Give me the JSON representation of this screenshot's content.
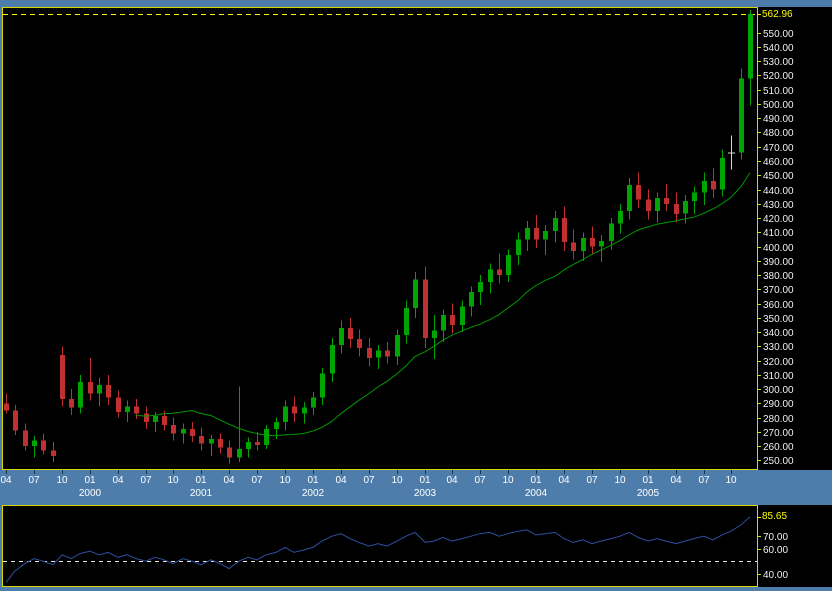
{
  "window": {
    "bg_color": "#4f7dab"
  },
  "chart_data": {
    "type": "candlestick",
    "title": "",
    "description": "Monthly OHLC candlestick chart with moving-average overlay and RSI-style indicator pane",
    "x": {
      "months": [
        "1999-04",
        "1999-05",
        "1999-06",
        "1999-07",
        "1999-08",
        "1999-09",
        "1999-10",
        "1999-11",
        "1999-12",
        "2000-01",
        "2000-02",
        "2000-03",
        "2000-04",
        "2000-05",
        "2000-06",
        "2000-07",
        "2000-08",
        "2000-09",
        "2000-10",
        "2000-11",
        "2000-12",
        "2001-01",
        "2001-02",
        "2001-03",
        "2001-04",
        "2001-05",
        "2001-06",
        "2001-07",
        "2001-08",
        "2001-09",
        "2001-10",
        "2001-11",
        "2001-12",
        "2002-01",
        "2002-02",
        "2002-03",
        "2002-04",
        "2002-05",
        "2002-06",
        "2002-07",
        "2002-08",
        "2002-09",
        "2002-10",
        "2002-11",
        "2002-12",
        "2003-01",
        "2003-02",
        "2003-03",
        "2003-04",
        "2003-05",
        "2003-06",
        "2003-07",
        "2003-08",
        "2003-09",
        "2003-10",
        "2003-11",
        "2003-12",
        "2004-01",
        "2004-02",
        "2004-03",
        "2004-04",
        "2004-05",
        "2004-06",
        "2004-07",
        "2004-08",
        "2004-09",
        "2004-10",
        "2004-11",
        "2004-12",
        "2005-01",
        "2005-02",
        "2005-03",
        "2005-04",
        "2005-05",
        "2005-06",
        "2005-07",
        "2005-08",
        "2005-09",
        "2005-10",
        "2005-11",
        "2005-12"
      ],
      "tick_month_numbers": [
        1,
        4,
        7,
        10
      ],
      "month_tick_labels": [
        "04",
        "07",
        "10",
        "01"
      ],
      "year_labels": [
        "2000",
        "2001",
        "2002",
        "2003",
        "2004",
        "2005"
      ]
    },
    "price_pane": {
      "ylim": [
        244,
        568
      ],
      "axis_ticks": {
        "min": 250,
        "max": 550,
        "step": 10,
        "format_decimals": 2
      },
      "last_price": 562.96,
      "last_price_label": "562.96",
      "ma_period": 15,
      "candles_ohlc": [
        [
          290,
          297,
          283,
          285
        ],
        [
          285,
          289,
          268,
          271
        ],
        [
          271,
          276,
          257,
          260
        ],
        [
          260,
          267,
          252,
          264
        ],
        [
          264,
          269,
          254,
          257
        ],
        [
          257,
          263,
          249,
          253
        ],
        [
          324,
          330,
          288,
          293
        ],
        [
          293,
          300,
          282,
          287
        ],
        [
          287,
          310,
          283,
          305
        ],
        [
          305,
          322,
          292,
          297
        ],
        [
          297,
          308,
          288,
          303
        ],
        [
          303,
          310,
          289,
          294
        ],
        [
          294,
          299,
          280,
          284
        ],
        [
          284,
          292,
          277,
          288
        ],
        [
          288,
          293,
          279,
          283
        ],
        [
          283,
          288,
          272,
          277
        ],
        [
          277,
          284,
          270,
          281
        ],
        [
          281,
          285,
          271,
          275
        ],
        [
          275,
          280,
          264,
          269
        ],
        [
          269,
          276,
          262,
          272
        ],
        [
          272,
          277,
          263,
          267
        ],
        [
          267,
          273,
          257,
          262
        ],
        [
          262,
          268,
          253,
          265
        ],
        [
          265,
          269,
          255,
          259
        ],
        [
          259,
          264,
          248,
          252
        ],
        [
          252,
          302,
          249,
          258
        ],
        [
          258,
          266,
          252,
          263
        ],
        [
          263,
          270,
          257,
          261
        ],
        [
          261,
          275,
          258,
          272
        ],
        [
          272,
          280,
          265,
          277
        ],
        [
          277,
          292,
          271,
          288
        ],
        [
          288,
          295,
          277,
          283
        ],
        [
          283,
          291,
          276,
          287
        ],
        [
          287,
          298,
          282,
          294
        ],
        [
          294,
          315,
          289,
          311
        ],
        [
          311,
          336,
          305,
          331
        ],
        [
          331,
          348,
          325,
          343
        ],
        [
          343,
          350,
          329,
          335
        ],
        [
          335,
          342,
          323,
          329
        ],
        [
          329,
          336,
          316,
          322
        ],
        [
          322,
          331,
          314,
          327
        ],
        [
          327,
          333,
          318,
          323
        ],
        [
          323,
          342,
          317,
          338
        ],
        [
          338,
          362,
          332,
          357
        ],
        [
          357,
          382,
          350,
          377
        ],
        [
          377,
          386,
          329,
          336
        ],
        [
          336,
          352,
          321,
          341
        ],
        [
          341,
          356,
          333,
          352
        ],
        [
          352,
          360,
          339,
          345
        ],
        [
          345,
          362,
          340,
          358
        ],
        [
          358,
          372,
          351,
          368
        ],
        [
          368,
          380,
          359,
          375
        ],
        [
          375,
          388,
          367,
          384
        ],
        [
          384,
          395,
          374,
          380
        ],
        [
          380,
          398,
          375,
          394
        ],
        [
          394,
          410,
          387,
          405
        ],
        [
          405,
          418,
          397,
          413
        ],
        [
          413,
          422,
          399,
          405
        ],
        [
          405,
          415,
          394,
          411
        ],
        [
          411,
          425,
          403,
          420
        ],
        [
          420,
          428,
          397,
          403
        ],
        [
          403,
          412,
          391,
          397
        ],
        [
          397,
          410,
          390,
          406
        ],
        [
          406,
          414,
          395,
          400
        ],
        [
          400,
          408,
          389,
          404
        ],
        [
          404,
          420,
          398,
          416
        ],
        [
          416,
          430,
          409,
          425
        ],
        [
          425,
          448,
          419,
          443
        ],
        [
          443,
          452,
          427,
          433
        ],
        [
          433,
          440,
          419,
          425
        ],
        [
          425,
          438,
          417,
          434
        ],
        [
          434,
          444,
          425,
          430
        ],
        [
          430,
          438,
          417,
          423
        ],
        [
          423,
          436,
          416,
          432
        ],
        [
          432,
          442,
          423,
          438
        ],
        [
          438,
          452,
          429,
          446
        ],
        [
          446,
          455,
          434,
          440
        ],
        [
          440,
          468,
          435,
          462
        ],
        [
          466,
          478,
          454,
          466
        ],
        [
          466,
          525,
          461,
          518
        ],
        [
          518,
          566,
          499,
          562.96
        ]
      ]
    },
    "indicator_pane": {
      "ylim": [
        30,
        95
      ],
      "axis_tick_values": [
        70,
        60,
        40
      ],
      "dashed_level": 50,
      "last_value": 85.65,
      "last_value_label": "85.65",
      "values": [
        33,
        42,
        48,
        52,
        50,
        47,
        55,
        52,
        56,
        58,
        55,
        57,
        53,
        55,
        52,
        50,
        53,
        51,
        48,
        52,
        50,
        47,
        51,
        48,
        44,
        50,
        53,
        51,
        55,
        57,
        61,
        57,
        59,
        61,
        66,
        70,
        72,
        68,
        65,
        62,
        64,
        62,
        66,
        70,
        73,
        65,
        66,
        69,
        66,
        68,
        70,
        72,
        73,
        70,
        72,
        74,
        75,
        71,
        72,
        73,
        68,
        65,
        67,
        64,
        66,
        68,
        70,
        73,
        69,
        66,
        68,
        66,
        64,
        66,
        68,
        70,
        67,
        71,
        74,
        79,
        85.65
      ]
    },
    "colors": {
      "up": "#00a400",
      "down": "#c03030",
      "doji": "#d8d8d8",
      "ma": "#009900",
      "last_price_line": "#ffff00",
      "indicator_line": "#2e4fa0",
      "indicator_dashed": "#e8e8e8",
      "pane_border": "#d9d900",
      "pane_bg": "#000000",
      "axis_text": "#f0f0f0",
      "accent_text": "#ffff00",
      "band_bg": "#4f7dab",
      "band_text": "#ffffff",
      "band_tick": "#16334f"
    }
  }
}
